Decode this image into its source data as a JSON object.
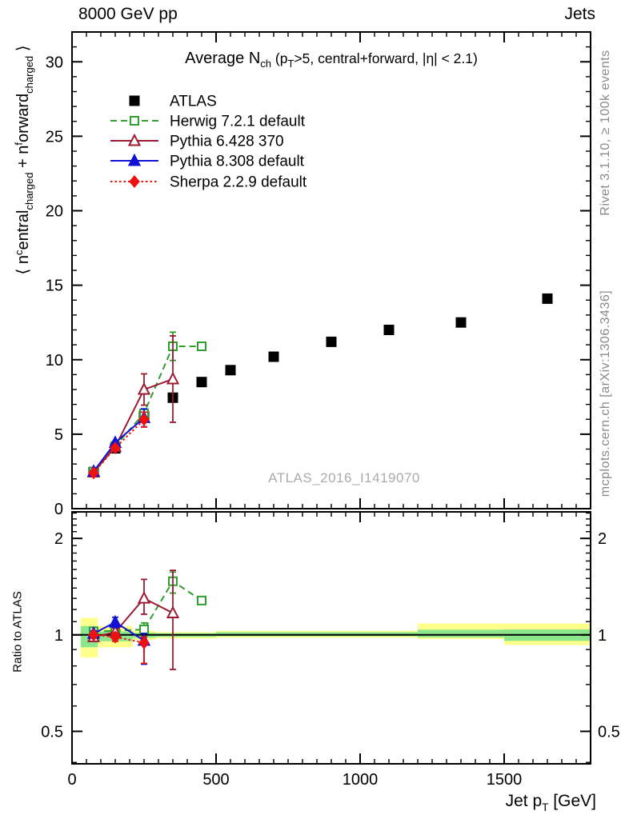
{
  "header": {
    "left": "8000 GeV pp",
    "right": "Jets"
  },
  "notes": {
    "rivet": "Rivet 3.1.10, ≥ 100k events",
    "mcplots": "mcplots.cern.ch [arXiv:1306.3436]"
  },
  "watermark": "ATLAS_2016_I1419070",
  "chart_data": {
    "type": "scatter",
    "title_parts": [
      {
        "t": "Average N"
      },
      {
        "t": "ch",
        "sub": true
      },
      {
        "t": " (p",
        "small": true
      },
      {
        "t": "T",
        "sub": true,
        "small": true
      },
      {
        "t": ">5, central+forward, |η| < 2.1)",
        "small": true
      }
    ],
    "xlabel_parts": [
      {
        "t": "Jet p"
      },
      {
        "t": "T",
        "sub": true
      },
      {
        "t": " [GeV]"
      }
    ],
    "xlim": [
      0,
      1800
    ],
    "x_major_ticks": [
      0,
      500,
      1000,
      1500
    ],
    "x_minor_step": 50,
    "main_panel": {
      "ylabel_parts": [
        {
          "t": "⟨ n"
        },
        {
          "t": "c",
          "sup": true
        },
        {
          "t": "entral"
        },
        {
          "t": "charged",
          "sub": true
        },
        {
          "t": " + n"
        },
        {
          "t": "f",
          "sup": true
        },
        {
          "t": "orward"
        },
        {
          "t": "charged",
          "sub": true
        },
        {
          "t": " ⟩"
        }
      ],
      "ylim": [
        0,
        32
      ],
      "y_major_ticks": [
        0,
        5,
        10,
        15,
        20,
        25,
        30
      ],
      "y_minor_step": 1
    },
    "ratio_panel": {
      "ylabel": "Ratio to ATLAS",
      "scale": "log",
      "ylim": [
        0.396,
        2.42
      ],
      "y_major_ticks": [
        0.5,
        1,
        2
      ],
      "y_minor_ticks": [
        0.4,
        0.6,
        0.7,
        0.8,
        0.9,
        1.1,
        1.2,
        1.3,
        1.4,
        1.5,
        1.6,
        1.7,
        1.8,
        1.9,
        2.1,
        2.2,
        2.3,
        2.4
      ],
      "reference_line": 1,
      "band_colors": {
        "outer": "#ffff8c",
        "inner": "#8ce68c"
      },
      "bands": [
        {
          "x0": 30,
          "x1": 90,
          "outer": [
            0.85,
            1.13
          ],
          "inner": [
            0.915,
            1.065
          ]
        },
        {
          "x0": 90,
          "x1": 210,
          "outer": [
            0.915,
            1.065
          ],
          "inner": [
            0.955,
            1.025
          ]
        },
        {
          "x0": 210,
          "x1": 290,
          "outer": [
            0.965,
            1.03
          ],
          "inner": [
            0.98,
            1.015
          ]
        },
        {
          "x0": 290,
          "x1": 500,
          "outer": [
            0.975,
            1.02
          ],
          "inner": [
            0.985,
            1.012
          ]
        },
        {
          "x0": 500,
          "x1": 1200,
          "outer": [
            0.98,
            1.03
          ],
          "inner": [
            0.99,
            1.02
          ]
        },
        {
          "x0": 1200,
          "x1": 1500,
          "outer": [
            0.97,
            1.085
          ],
          "inner": [
            0.982,
            1.038
          ]
        },
        {
          "x0": 1500,
          "x1": 1800,
          "outer": [
            0.93,
            1.085
          ],
          "inner": [
            0.958,
            1.04
          ]
        }
      ]
    },
    "series": [
      {
        "name": "ATLAS",
        "color": "#000000",
        "marker": "square",
        "filled": true,
        "line": "none",
        "points": [
          [
            75,
            2.45,
            0.12
          ],
          [
            150,
            4.05,
            0.12
          ],
          [
            250,
            6.2,
            0.15
          ],
          [
            350,
            7.45,
            0.2
          ],
          [
            450,
            8.5,
            0.2
          ],
          [
            550,
            9.3,
            0.2
          ],
          [
            700,
            10.2,
            0.2
          ],
          [
            900,
            11.2,
            0.2
          ],
          [
            1100,
            12.0,
            0.2
          ],
          [
            1350,
            12.5,
            0.2
          ],
          [
            1650,
            14.1,
            0.25
          ]
        ],
        "ratio_points": []
      },
      {
        "name": "Herwig 7.2.1 default",
        "color": "#2f9e2f",
        "marker": "square",
        "filled": false,
        "line": "dashed",
        "points": [
          [
            75,
            2.5,
            0.05
          ],
          [
            150,
            4.2,
            0.06
          ],
          [
            250,
            6.4,
            0.12
          ],
          [
            350,
            10.9,
            0.95
          ],
          [
            450,
            10.9,
            0.15
          ]
        ],
        "ratio_points": [
          [
            75,
            1.025,
            0.03,
            0.03
          ],
          [
            150,
            1.03,
            0.02,
            0.02
          ],
          [
            250,
            1.04,
            0.05,
            0.05
          ],
          [
            350,
            1.47,
            0.12,
            0.1
          ],
          [
            450,
            1.28,
            0.03,
            0.03
          ]
        ]
      },
      {
        "name": "Pythia 6.428 370",
        "color": "#9c1b33",
        "marker": "triangle",
        "filled": false,
        "line": "solid",
        "points": [
          [
            75,
            2.45,
            0.05
          ],
          [
            150,
            4.15,
            0.06
          ],
          [
            250,
            8.0,
            1.05
          ],
          [
            350,
            8.7,
            2.9
          ]
        ],
        "ratio_points": [
          [
            75,
            0.985,
            0.03,
            0.03
          ],
          [
            150,
            1.02,
            0.03,
            0.03
          ],
          [
            250,
            1.3,
            0.14,
            0.19
          ],
          [
            350,
            1.17,
            0.39,
            0.42
          ]
        ]
      },
      {
        "name": "Pythia 8.308 default",
        "color": "#1111d6",
        "marker": "triangle",
        "filled": true,
        "line": "solid",
        "points": [
          [
            75,
            2.5,
            0.05
          ],
          [
            150,
            4.43,
            0.08
          ],
          [
            250,
            6.1,
            0.6
          ]
        ],
        "ratio_points": [
          [
            75,
            1.01,
            0.02,
            0.02
          ],
          [
            150,
            1.095,
            0.04,
            0.04
          ],
          [
            250,
            0.96,
            0.15,
            0.05
          ]
        ]
      },
      {
        "name": "Sherpa 2.2.9 default",
        "color": "#ee1111",
        "marker": "diamond",
        "filled": true,
        "line": "dotted",
        "points": [
          [
            75,
            2.4,
            0.05
          ],
          [
            150,
            4.08,
            0.06
          ],
          [
            250,
            5.98,
            0.5
          ]
        ],
        "ratio_points": [
          [
            75,
            1.0,
            0.02,
            0.02
          ],
          [
            150,
            0.985,
            0.03,
            0.03
          ],
          [
            250,
            0.945,
            0.13,
            0.04
          ]
        ]
      }
    ]
  }
}
